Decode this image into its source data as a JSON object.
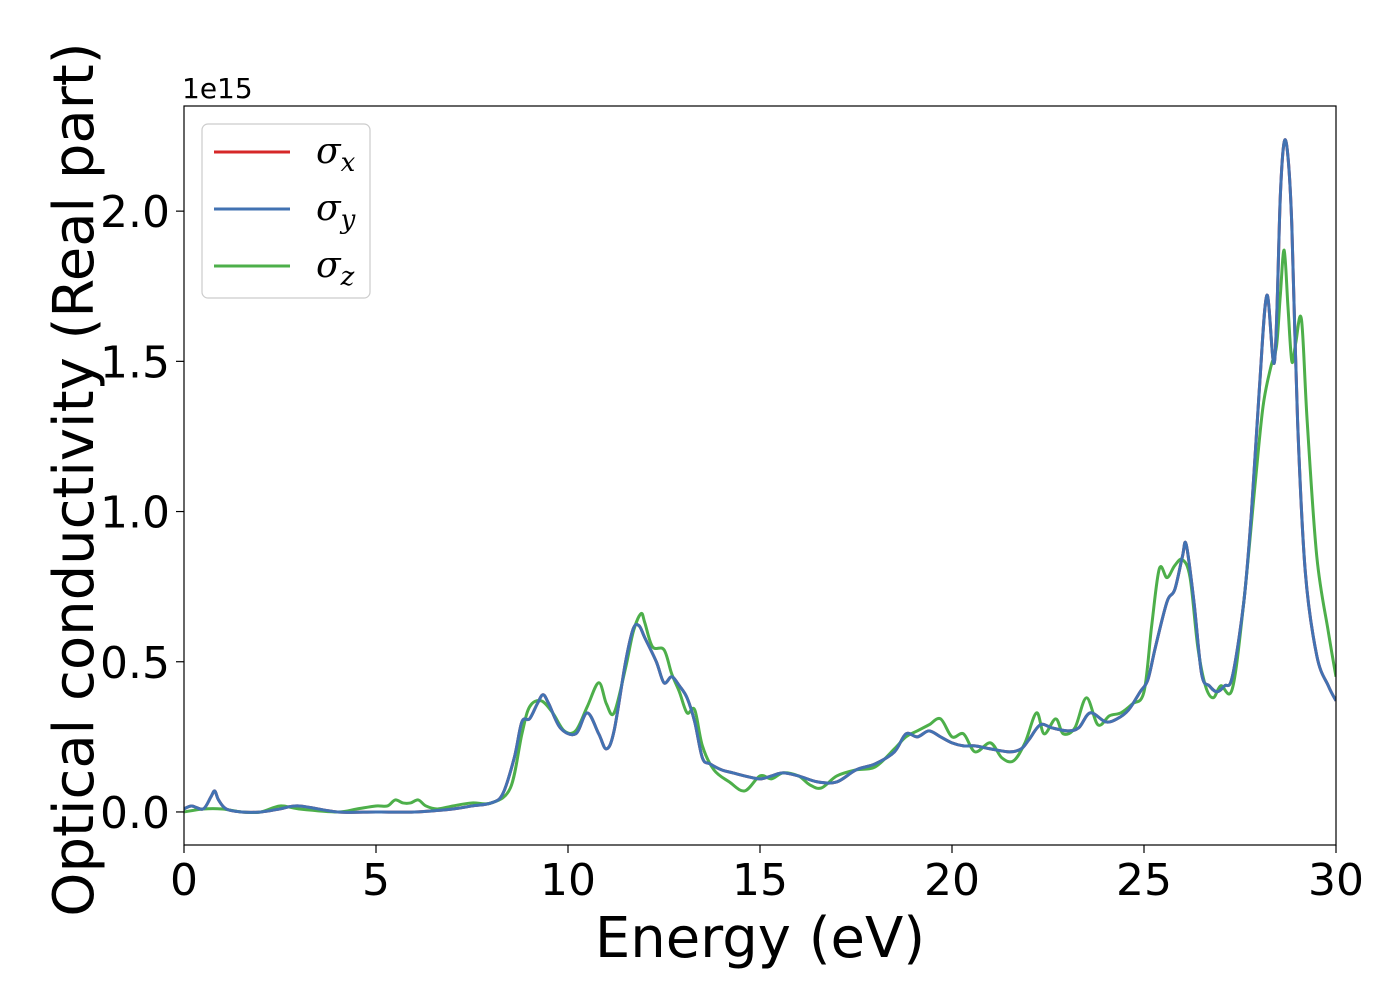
{
  "chart_data": {
    "type": "line",
    "xlabel": "Energy (eV)",
    "ylabel": "Optical conductivity (Real part)",
    "y_offset_text": "1e15",
    "xlim": [
      0,
      30
    ],
    "ylim": [
      -0.11,
      2.35
    ],
    "x_ticks": [
      0,
      5,
      10,
      15,
      20,
      25,
      30
    ],
    "x_tick_labels": [
      "0",
      "5",
      "10",
      "15",
      "20",
      "25",
      "30"
    ],
    "y_ticks": [
      0.0,
      0.5,
      1.0,
      1.5,
      2.0
    ],
    "y_tick_labels": [
      "0.0",
      "0.5",
      "1.0",
      "1.5",
      "2.0"
    ],
    "grid": false,
    "legend_position": "top-left",
    "series": [
      {
        "name": "σx",
        "legend_base": "σ",
        "legend_sub": "x",
        "color": "#d62728",
        "x": [
          0,
          0.2,
          0.5,
          0.7,
          0.8,
          0.9,
          1.1,
          1.5,
          2,
          2.5,
          3,
          4,
          5,
          6,
          7,
          7.5,
          8,
          8.3,
          8.6,
          8.8,
          9.0,
          9.2,
          9.35,
          9.5,
          9.8,
          10.2,
          10.5,
          10.8,
          11.0,
          11.2,
          11.5,
          11.7,
          11.85,
          12.0,
          12.3,
          12.5,
          12.7,
          12.9,
          13.1,
          13.3,
          13.5,
          13.7,
          14,
          14.3,
          14.6,
          15,
          15.3,
          15.6,
          16,
          16.5,
          17,
          17.5,
          18,
          18.5,
          18.8,
          19.1,
          19.4,
          19.7,
          20,
          20.3,
          20.6,
          21,
          21.5,
          21.8,
          22.0,
          22.3,
          22.6,
          23,
          23.3,
          23.6,
          24,
          24.3,
          24.6,
          24.9,
          25.1,
          25.3,
          25.6,
          25.8,
          26.0,
          26.1,
          26.3,
          26.5,
          26.7,
          26.9,
          27.1,
          27.3,
          27.6,
          27.8,
          28.0,
          28.2,
          28.4,
          28.55,
          28.65,
          28.75,
          28.85,
          29.0,
          29.2,
          29.5,
          29.8,
          30
        ],
        "y": [
          0.01,
          0.02,
          0.01,
          0.05,
          0.07,
          0.04,
          0.01,
          0.0,
          0.0,
          0.01,
          0.02,
          0.0,
          0.0,
          0.0,
          0.01,
          0.02,
          0.03,
          0.06,
          0.18,
          0.3,
          0.31,
          0.36,
          0.39,
          0.36,
          0.28,
          0.26,
          0.33,
          0.26,
          0.21,
          0.27,
          0.5,
          0.61,
          0.62,
          0.58,
          0.5,
          0.43,
          0.45,
          0.42,
          0.38,
          0.3,
          0.18,
          0.16,
          0.14,
          0.13,
          0.12,
          0.11,
          0.12,
          0.13,
          0.12,
          0.1,
          0.1,
          0.14,
          0.16,
          0.2,
          0.26,
          0.25,
          0.27,
          0.25,
          0.23,
          0.22,
          0.22,
          0.21,
          0.2,
          0.21,
          0.24,
          0.29,
          0.28,
          0.27,
          0.28,
          0.33,
          0.3,
          0.31,
          0.34,
          0.4,
          0.44,
          0.55,
          0.7,
          0.74,
          0.85,
          0.89,
          0.7,
          0.46,
          0.42,
          0.4,
          0.42,
          0.45,
          0.7,
          1.0,
          1.4,
          1.72,
          1.5,
          2.05,
          2.23,
          2.18,
          1.95,
          1.3,
          0.8,
          0.52,
          0.42,
          0.37
        ]
      },
      {
        "name": "σy",
        "legend_base": "σ",
        "legend_sub": "y",
        "color": "#4272b2",
        "x": [
          0,
          0.2,
          0.5,
          0.7,
          0.8,
          0.9,
          1.1,
          1.5,
          2,
          2.5,
          3,
          4,
          5,
          6,
          7,
          7.5,
          8,
          8.3,
          8.6,
          8.8,
          9.0,
          9.2,
          9.35,
          9.5,
          9.8,
          10.2,
          10.5,
          10.8,
          11.0,
          11.2,
          11.5,
          11.7,
          11.85,
          12.0,
          12.3,
          12.5,
          12.7,
          12.9,
          13.1,
          13.3,
          13.5,
          13.7,
          14,
          14.3,
          14.6,
          15,
          15.3,
          15.6,
          16,
          16.5,
          17,
          17.5,
          18,
          18.5,
          18.8,
          19.1,
          19.4,
          19.7,
          20,
          20.3,
          20.6,
          21,
          21.5,
          21.8,
          22.0,
          22.3,
          22.6,
          23,
          23.3,
          23.6,
          24,
          24.3,
          24.6,
          24.9,
          25.1,
          25.3,
          25.6,
          25.8,
          26.0,
          26.1,
          26.3,
          26.5,
          26.7,
          26.9,
          27.1,
          27.3,
          27.6,
          27.8,
          28.0,
          28.2,
          28.4,
          28.55,
          28.65,
          28.75,
          28.85,
          29.0,
          29.2,
          29.5,
          29.8,
          30
        ],
        "y": [
          0.01,
          0.02,
          0.01,
          0.05,
          0.07,
          0.04,
          0.01,
          0.0,
          0.0,
          0.01,
          0.02,
          0.0,
          0.0,
          0.0,
          0.01,
          0.02,
          0.03,
          0.06,
          0.18,
          0.3,
          0.31,
          0.36,
          0.39,
          0.36,
          0.28,
          0.26,
          0.33,
          0.26,
          0.21,
          0.27,
          0.5,
          0.61,
          0.62,
          0.58,
          0.5,
          0.43,
          0.45,
          0.42,
          0.38,
          0.3,
          0.18,
          0.16,
          0.14,
          0.13,
          0.12,
          0.11,
          0.12,
          0.13,
          0.12,
          0.1,
          0.1,
          0.14,
          0.16,
          0.2,
          0.26,
          0.25,
          0.27,
          0.25,
          0.23,
          0.22,
          0.22,
          0.21,
          0.2,
          0.21,
          0.24,
          0.29,
          0.28,
          0.27,
          0.28,
          0.33,
          0.3,
          0.31,
          0.34,
          0.4,
          0.44,
          0.55,
          0.7,
          0.74,
          0.85,
          0.89,
          0.7,
          0.46,
          0.42,
          0.4,
          0.42,
          0.45,
          0.7,
          1.0,
          1.4,
          1.72,
          1.5,
          2.05,
          2.23,
          2.18,
          1.95,
          1.3,
          0.8,
          0.52,
          0.42,
          0.37
        ]
      },
      {
        "name": "σz",
        "legend_base": "σ",
        "legend_sub": "z",
        "color": "#4daf4a",
        "x": [
          0,
          0.5,
          1,
          1.5,
          2,
          2.5,
          3,
          4,
          4.5,
          5,
          5.3,
          5.5,
          5.7,
          5.9,
          6.1,
          6.3,
          6.6,
          7,
          7.5,
          8,
          8.5,
          8.8,
          9.0,
          9.3,
          9.6,
          9.9,
          10.2,
          10.5,
          10.8,
          11.0,
          11.2,
          11.5,
          11.7,
          11.9,
          12.0,
          12.2,
          12.5,
          12.7,
          12.9,
          13.1,
          13.3,
          13.5,
          13.8,
          14.2,
          14.6,
          15,
          15.3,
          15.6,
          16,
          16.3,
          16.6,
          17,
          17.5,
          18,
          18.5,
          18.8,
          19.1,
          19.4,
          19.7,
          20,
          20.3,
          20.6,
          21,
          21.3,
          21.6,
          21.9,
          22.2,
          22.4,
          22.7,
          22.9,
          23.2,
          23.5,
          23.8,
          24.1,
          24.4,
          24.7,
          25.0,
          25.2,
          25.4,
          25.6,
          25.8,
          26.0,
          26.2,
          26.4,
          26.6,
          26.8,
          27.0,
          27.3,
          27.6,
          27.9,
          28.1,
          28.3,
          28.45,
          28.55,
          28.65,
          28.75,
          28.85,
          28.95,
          29.1,
          29.25,
          29.5,
          29.8,
          30
        ],
        "y": [
          0.0,
          0.01,
          0.01,
          0.0,
          0.0,
          0.02,
          0.01,
          0.0,
          0.01,
          0.02,
          0.02,
          0.04,
          0.03,
          0.03,
          0.04,
          0.02,
          0.01,
          0.02,
          0.03,
          0.03,
          0.08,
          0.26,
          0.35,
          0.37,
          0.33,
          0.27,
          0.27,
          0.35,
          0.43,
          0.36,
          0.33,
          0.48,
          0.6,
          0.66,
          0.63,
          0.55,
          0.54,
          0.46,
          0.4,
          0.33,
          0.34,
          0.22,
          0.14,
          0.1,
          0.07,
          0.12,
          0.11,
          0.13,
          0.12,
          0.09,
          0.08,
          0.12,
          0.14,
          0.15,
          0.21,
          0.25,
          0.27,
          0.29,
          0.31,
          0.25,
          0.26,
          0.2,
          0.23,
          0.18,
          0.17,
          0.23,
          0.33,
          0.26,
          0.31,
          0.26,
          0.28,
          0.38,
          0.29,
          0.32,
          0.33,
          0.36,
          0.4,
          0.62,
          0.81,
          0.78,
          0.82,
          0.84,
          0.78,
          0.55,
          0.42,
          0.38,
          0.42,
          0.41,
          0.7,
          1.1,
          1.35,
          1.48,
          1.55,
          1.72,
          1.87,
          1.68,
          1.5,
          1.56,
          1.64,
          1.3,
          0.85,
          0.6,
          0.45
        ]
      }
    ]
  }
}
